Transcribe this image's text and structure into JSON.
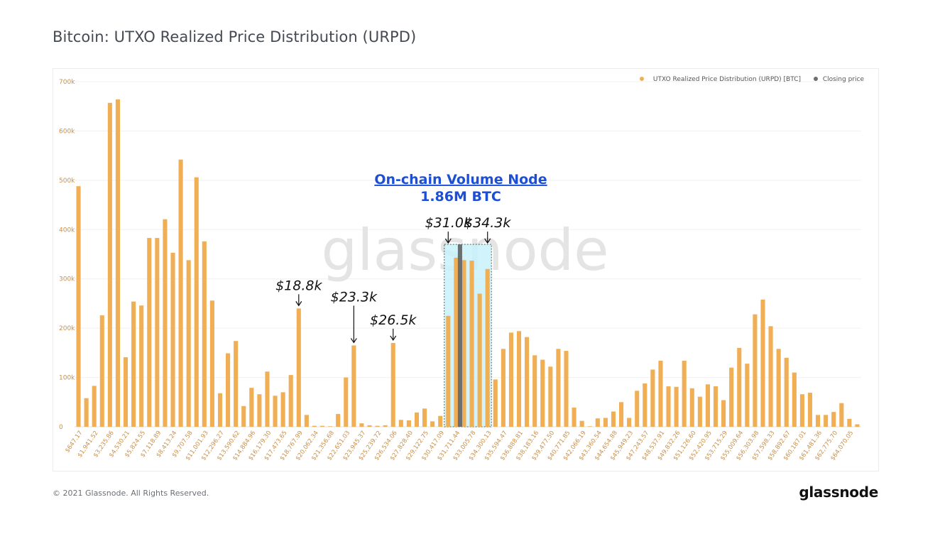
{
  "title": "Bitcoin: UTXO Realized Price Distribution (URPD)",
  "footer": "© 2021 Glassnode. All Rights Reserved.",
  "brand": "glassnode",
  "watermark": "glassnode",
  "colors": {
    "bar": "#F0AE55",
    "closing": "#6b6f6f",
    "highlight": "#c9f1fb",
    "annotation_blue": "#1d4fd6",
    "axis_text": "#c9904a"
  },
  "chart_data": {
    "type": "bar",
    "ylim": [
      0,
      700000
    ],
    "yticks": [
      {
        "value": 0,
        "label": "0"
      },
      {
        "value": 100000,
        "label": "100k"
      },
      {
        "value": 200000,
        "label": "200k"
      },
      {
        "value": 300000,
        "label": "300k"
      },
      {
        "value": 400000,
        "label": "400k"
      },
      {
        "value": 500000,
        "label": "500k"
      },
      {
        "value": 600000,
        "label": "600k"
      },
      {
        "value": 700000,
        "label": "700k"
      }
    ],
    "grid": true,
    "legend_position": "top-right",
    "legend": [
      {
        "label": "UTXO Realized Price Distribution (URPD) [BTC]",
        "color": "#F0AE55"
      },
      {
        "label": "Closing price",
        "color": "#6b6f6f"
      }
    ],
    "xtick_labels": [
      "$647.17",
      "$1,941.52",
      "$3,235.86",
      "$4,530.21",
      "$5,824.55",
      "$7,118.89",
      "$8,413.24",
      "$9,707.58",
      "$11,001.93",
      "$12,296.27",
      "$13,590.62",
      "$14,884.96",
      "$16,179.30",
      "$17,473.65",
      "$18,767.99",
      "$20,062.34",
      "$21,356.68",
      "$22,651.03",
      "$23,945.37",
      "$25,239.72",
      "$26,534.06",
      "$27,828.40",
      "$29,122.75",
      "$30,417.09",
      "$31,711.44",
      "$33,005.78",
      "$34,300.13",
      "$35,594.47",
      "$36,888.81",
      "$38,183.16",
      "$39,477.50",
      "$40,771.85",
      "$42,066.19",
      "$43,360.54",
      "$44,654.88",
      "$45,949.23",
      "$47,243.57",
      "$48,537.91",
      "$49,832.26",
      "$51,126.60",
      "$52,420.95",
      "$53,715.29",
      "$55,009.64",
      "$56,303.98",
      "$57,598.33",
      "$58,892.67",
      "$60,187.01",
      "$61,481.36",
      "$62,775.70",
      "$64,070.05"
    ],
    "values": [
      488000,
      58000,
      83000,
      226000,
      657000,
      664000,
      141000,
      254000,
      246000,
      383000,
      383000,
      421000,
      353000,
      542000,
      338000,
      506000,
      376000,
      256000,
      68000,
      149000,
      174000,
      42000,
      79000,
      66000,
      112000,
      63000,
      70000,
      105000,
      240000,
      24000,
      2000,
      2000,
      1000,
      26000,
      100000,
      165000,
      7000,
      3000,
      2000,
      3000,
      170000,
      14000,
      13000,
      29000,
      37000,
      11000,
      22000,
      225000,
      343000,
      338000,
      337000,
      270000,
      320000,
      96000,
      158000,
      191000,
      194000,
      182000,
      145000,
      136000,
      122000,
      158000,
      154000,
      39000,
      12000,
      1000,
      17000,
      18000,
      31000,
      50000,
      18000,
      73000,
      88000,
      116000,
      134000,
      82000,
      81000,
      134000,
      78000,
      61000,
      86000,
      82000,
      54000,
      120000,
      160000,
      128000,
      228000,
      258000,
      204000,
      158000,
      140000,
      110000,
      66000,
      69000,
      24000,
      24000,
      30000,
      48000,
      16000,
      5000
    ],
    "closing_price_value": 370000,
    "closing_price_after_bar_index": 48,
    "annotations": [
      {
        "label": "$18.8k",
        "bar_index": 28
      },
      {
        "label": "$23.3k",
        "bar_index": 35
      },
      {
        "label": "$26.5k",
        "bar_index": 40
      },
      {
        "label": "$31.0k",
        "bar_index": 47
      },
      {
        "label": "$34.3k",
        "bar_index": 52
      }
    ],
    "volume_node": {
      "title": "On-chain Volume Node",
      "value": "1.86M BTC",
      "start_bar_index": 47,
      "end_bar_index": 52
    }
  }
}
